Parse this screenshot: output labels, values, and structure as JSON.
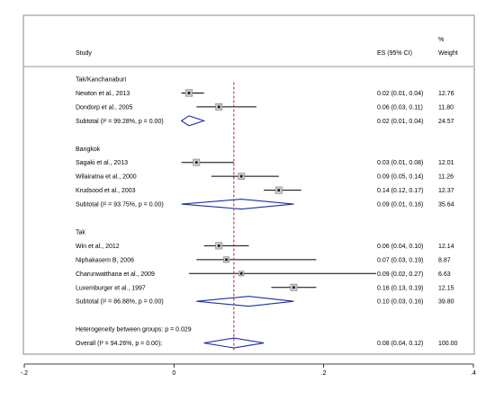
{
  "header": {
    "study": "Study",
    "es": "ES (95% CI)",
    "weight_pct": "%",
    "weight": "Weight"
  },
  "rows": [
    {
      "kind": "group",
      "label": "Tak/Kanchanaburi"
    },
    {
      "kind": "study",
      "label": "Newton et al., 2013",
      "es_text": "0.02 (0.01, 0.04)",
      "weight": "12.76"
    },
    {
      "kind": "study",
      "label": "Dondorp et al., 2005",
      "es_text": "0.06 (0.03, 0.11)",
      "weight": "11.80"
    },
    {
      "kind": "subtotal",
      "label": "Subtotal  (I^2 = 99.28%, p = 0.00)",
      "es_text": "0.02 (0.01, 0.04)",
      "weight": "24.57"
    },
    {
      "kind": "gap"
    },
    {
      "kind": "group",
      "label": "Bangkok"
    },
    {
      "kind": "study",
      "label": "Sagaki et al., 2013",
      "es_text": "0.03 (0.01, 0.08)",
      "weight": "12.01"
    },
    {
      "kind": "study",
      "label": "Wilairatna et al., 2000",
      "es_text": "0.09 (0.05, 0.14)",
      "weight": "11.26"
    },
    {
      "kind": "study",
      "label": "Krudsood et al., 2003",
      "es_text": "0.14 (0.12, 0.17)",
      "weight": "12.37"
    },
    {
      "kind": "subtotal",
      "label": "Subtotal  (I^2 = 93.75%, p = 0.00)",
      "es_text": "0.09 (0.01, 0.16)",
      "weight": "35.64"
    },
    {
      "kind": "gap"
    },
    {
      "kind": "group",
      "label": "Tak"
    },
    {
      "kind": "study",
      "label": "Win et al., 2012",
      "es_text": "0.06 (0.04, 0.10)",
      "weight": "12.14"
    },
    {
      "kind": "study",
      "label": "Niphakasem B, 2006",
      "es_text": "0.07 (0.03, 0.19)",
      "weight": "8.87"
    },
    {
      "kind": "study",
      "label": "Charunwatthana et al., 2009",
      "es_text": "0.09 (0.02, 0.27)",
      "weight": "6.63"
    },
    {
      "kind": "study",
      "label": "Luxemburger et al., 1997",
      "es_text": "0.16 (0.13, 0.19)",
      "weight": "12.15"
    },
    {
      "kind": "subtotal",
      "label": "Subtotal  (I^2 = 86.88%, p = 0.00)",
      "es_text": "0.10 (0.03, 0.16)",
      "weight": "39.80"
    },
    {
      "kind": "gap"
    },
    {
      "kind": "note",
      "label": "Heterogeneity between groups: p = 0.029"
    },
    {
      "kind": "overall",
      "label": "Overall  (I^2 = 94.26%, p = 0.00);",
      "es_text": "0.08 (0.04, 0.12)",
      "weight": "100.00"
    }
  ],
  "chart_data": {
    "type": "forest",
    "xlim": [
      -0.2,
      0.4
    ],
    "xticks": [
      "-.2",
      "0",
      ".2",
      ".4"
    ],
    "xtick_values": [
      -0.2,
      0,
      0.2,
      0.4
    ],
    "reference_line": 0.08,
    "reference_line_style": "dashed",
    "reference_line_color": "#b0202a",
    "diamond_color": "#1f2fa0",
    "studies": [
      {
        "name": "Newton et al., 2013",
        "es": 0.02,
        "lo": 0.01,
        "hi": 0.04
      },
      {
        "name": "Dondorp et al., 2005",
        "es": 0.06,
        "lo": 0.03,
        "hi": 0.11
      },
      {
        "name": "Sagaki et al., 2013",
        "es": 0.03,
        "lo": 0.01,
        "hi": 0.08
      },
      {
        "name": "Wilairatna et al., 2000",
        "es": 0.09,
        "lo": 0.05,
        "hi": 0.14
      },
      {
        "name": "Krudsood et al., 2003",
        "es": 0.14,
        "lo": 0.12,
        "hi": 0.17
      },
      {
        "name": "Win et al., 2012",
        "es": 0.06,
        "lo": 0.04,
        "hi": 0.1
      },
      {
        "name": "Niphakasem B, 2006",
        "es": 0.07,
        "lo": 0.03,
        "hi": 0.19
      },
      {
        "name": "Charunwatthana et al., 2009",
        "es": 0.09,
        "lo": 0.02,
        "hi": 0.27
      },
      {
        "name": "Luxemburger et al., 1997",
        "es": 0.16,
        "lo": 0.13,
        "hi": 0.19
      }
    ],
    "pooled": [
      {
        "name": "Tak/Kanchanaburi subtotal",
        "es": 0.02,
        "lo": 0.01,
        "hi": 0.04
      },
      {
        "name": "Bangkok subtotal",
        "es": 0.09,
        "lo": 0.01,
        "hi": 0.16
      },
      {
        "name": "Tak subtotal",
        "es": 0.1,
        "lo": 0.03,
        "hi": 0.16
      },
      {
        "name": "Overall",
        "es": 0.08,
        "lo": 0.04,
        "hi": 0.12
      }
    ]
  }
}
